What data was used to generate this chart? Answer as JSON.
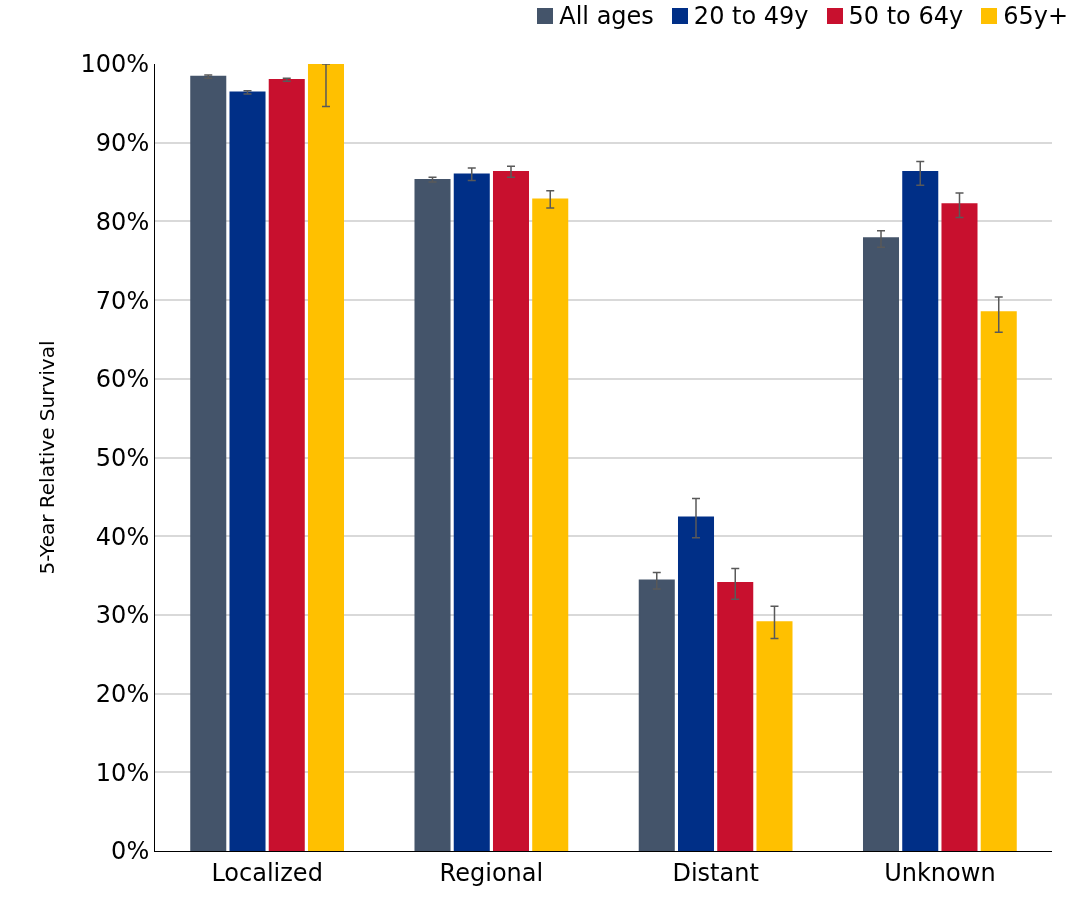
{
  "chart_data": {
    "type": "bar",
    "ylabel": "5-Year Relative Survival",
    "categories": [
      "Localized",
      "Regional",
      "Distant",
      "Unknown"
    ],
    "series": [
      {
        "name": "All ages",
        "color": "#44546a",
        "values": [
          98.4,
          85.3,
          34.4,
          77.9
        ],
        "errors": [
          [
            98.2,
            98.6
          ],
          [
            85.0,
            85.6
          ],
          [
            33.3,
            35.4
          ],
          [
            76.7,
            78.8
          ]
        ]
      },
      {
        "name": "20 to 49y",
        "color": "#002f87",
        "values": [
          96.4,
          86.0,
          42.4,
          86.3
        ],
        "errors": [
          [
            96.2,
            96.6
          ],
          [
            85.2,
            86.8
          ],
          [
            39.8,
            44.8
          ],
          [
            84.6,
            87.6
          ]
        ]
      },
      {
        "name": "50 to 64y",
        "color": "#c8102e",
        "values": [
          98.0,
          86.3,
          34.1,
          82.2
        ],
        "errors": [
          [
            97.8,
            98.2
          ],
          [
            85.6,
            87.0
          ],
          [
            32.0,
            35.9
          ],
          [
            80.5,
            83.6
          ]
        ]
      },
      {
        "name": "65y+",
        "color": "#ffc000",
        "values": [
          100,
          82.8,
          29.1,
          68.5
        ],
        "errors": [
          [
            94.6,
            100
          ],
          [
            81.7,
            83.9
          ],
          [
            27.0,
            31.1
          ],
          [
            65.9,
            70.4
          ]
        ]
      }
    ],
    "ylim": [
      0,
      100
    ],
    "yticks": [
      {
        "value": 0,
        "label": "0%"
      },
      {
        "value": 10,
        "label": "10%"
      },
      {
        "value": 20,
        "label": "20%"
      },
      {
        "value": 30,
        "label": "30%"
      },
      {
        "value": 40,
        "label": "40%"
      },
      {
        "value": 50,
        "label": "50%"
      },
      {
        "value": 60,
        "label": "60%"
      },
      {
        "value": 70,
        "label": "70%"
      },
      {
        "value": 80,
        "label": "80%"
      },
      {
        "value": 90,
        "label": "90%"
      },
      {
        "value": 100,
        "label": "100%"
      }
    ],
    "grid": "y",
    "legend": "top right"
  }
}
